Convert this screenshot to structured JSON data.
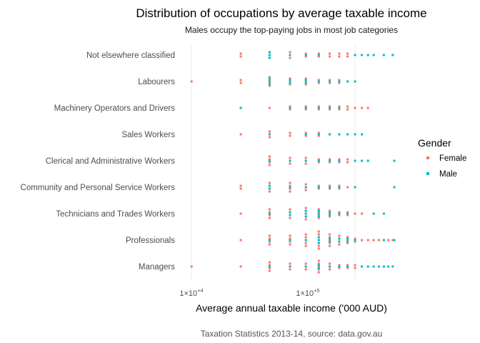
{
  "chart_data": {
    "type": "scatter",
    "title": "Distribution of occupations by average taxable income",
    "subtitle": "Males occupy the top-paying jobs in most job categories",
    "caption": "Taxation Statistics 2013-14, source: data.gov.au",
    "xlabel": "Average annual taxable income ('000 AUD)",
    "ylabel": "",
    "x_scale": "log10",
    "xlim": [
      8500,
      200000
    ],
    "x_ticks": [
      {
        "value": 10000,
        "base": "1×10",
        "exp": "+4"
      },
      {
        "value": 100000,
        "base": "1×10",
        "exp": "+5"
      }
    ],
    "grid": true,
    "legend": {
      "title": "Gender",
      "position": "right"
    },
    "colors": {
      "Female": "#F8766D",
      "Male": "#00BFC4"
    },
    "categories": [
      "Managers",
      "Professionals",
      "Technicians and Trades Workers",
      "Community and Personal Service Workers",
      "Clerical and Administrative Workers",
      "Sales Workers",
      "Machinery Operators and Drivers",
      "Labourers",
      "Not elsewhere classified"
    ],
    "series": [
      {
        "name": "Female",
        "points": {
          "Managers": [
            [
              10000,
              1
            ],
            [
              20000,
              1
            ],
            [
              30000,
              4
            ],
            [
              40000,
              3
            ],
            [
              50000,
              3
            ],
            [
              60000,
              5
            ],
            [
              70000,
              3
            ],
            [
              80000,
              2
            ],
            [
              90000,
              2
            ],
            [
              100000,
              2
            ]
          ],
          "Professionals": [
            [
              20000,
              1
            ],
            [
              30000,
              4
            ],
            [
              40000,
              4
            ],
            [
              50000,
              5
            ],
            [
              60000,
              7
            ],
            [
              70000,
              5
            ],
            [
              80000,
              4
            ],
            [
              90000,
              3
            ],
            [
              100000,
              2
            ],
            [
              110000,
              1
            ],
            [
              120000,
              1
            ],
            [
              130000,
              1
            ],
            [
              140000,
              1
            ],
            [
              150000,
              1
            ],
            [
              160000,
              1
            ],
            [
              170000,
              1
            ],
            [
              180000,
              1
            ],
            [
              190000,
              1
            ]
          ],
          "Technicians and Trades Workers": [
            [
              20000,
              1
            ],
            [
              30000,
              4
            ],
            [
              40000,
              4
            ],
            [
              50000,
              5
            ],
            [
              60000,
              4
            ],
            [
              70000,
              3
            ],
            [
              80000,
              2
            ],
            [
              90000,
              2
            ],
            [
              100000,
              1
            ],
            [
              110000,
              1
            ]
          ],
          "Community and Personal Service Workers": [
            [
              20000,
              2
            ],
            [
              30000,
              4
            ],
            [
              40000,
              4
            ],
            [
              50000,
              3
            ],
            [
              60000,
              2
            ],
            [
              70000,
              2
            ],
            [
              80000,
              2
            ],
            [
              90000,
              1
            ]
          ],
          "Clerical and Administrative Workers": [
            [
              30000,
              4
            ],
            [
              40000,
              3
            ],
            [
              50000,
              3
            ],
            [
              60000,
              2
            ],
            [
              70000,
              2
            ],
            [
              80000,
              2
            ],
            [
              90000,
              2
            ]
          ],
          "Sales Workers": [
            [
              20000,
              1
            ],
            [
              30000,
              3
            ],
            [
              40000,
              2
            ],
            [
              50000,
              2
            ],
            [
              60000,
              2
            ],
            [
              70000,
              1
            ]
          ],
          "Machinery Operators and Drivers": [
            [
              30000,
              1
            ],
            [
              40000,
              2
            ],
            [
              50000,
              2
            ],
            [
              60000,
              2
            ],
            [
              70000,
              2
            ],
            [
              80000,
              2
            ],
            [
              90000,
              2
            ],
            [
              100000,
              1
            ],
            [
              110000,
              1
            ],
            [
              120000,
              1
            ]
          ],
          "Labourers": [
            [
              10000,
              1
            ],
            [
              20000,
              2
            ],
            [
              30000,
              4
            ],
            [
              40000,
              3
            ],
            [
              50000,
              3
            ],
            [
              60000,
              2
            ],
            [
              70000,
              2
            ],
            [
              80000,
              2
            ],
            [
              90000,
              1
            ]
          ],
          "Not elsewhere classified": [
            [
              20000,
              2
            ],
            [
              30000,
              3
            ],
            [
              40000,
              3
            ],
            [
              50000,
              2
            ],
            [
              60000,
              2
            ],
            [
              70000,
              2
            ],
            [
              80000,
              2
            ],
            [
              90000,
              2
            ]
          ]
        }
      },
      {
        "name": "Male",
        "points": {
          "Managers": [
            [
              30000,
              1
            ],
            [
              40000,
              1
            ],
            [
              50000,
              1
            ],
            [
              60000,
              2
            ],
            [
              70000,
              1
            ],
            [
              80000,
              1
            ],
            [
              90000,
              1
            ],
            [
              110000,
              1
            ],
            [
              120000,
              1
            ],
            [
              130000,
              1
            ],
            [
              140000,
              1
            ],
            [
              150000,
              1
            ],
            [
              160000,
              1
            ],
            [
              170000,
              1
            ]
          ],
          "Professionals": [
            [
              30000,
              1
            ],
            [
              40000,
              1
            ],
            [
              50000,
              1
            ],
            [
              60000,
              3
            ],
            [
              70000,
              2
            ],
            [
              80000,
              2
            ],
            [
              90000,
              2
            ],
            [
              100000,
              1
            ],
            [
              150000,
              1
            ],
            [
              200000,
              1
            ],
            [
              250000,
              1
            ],
            [
              300000,
              1
            ],
            [
              350000,
              1
            ],
            [
              400000,
              1
            ],
            [
              450000,
              1
            ],
            [
              500000,
              1
            ],
            [
              550000,
              1
            ],
            [
              600000,
              1
            ]
          ],
          "Technicians and Trades Workers": [
            [
              30000,
              1
            ],
            [
              40000,
              2
            ],
            [
              50000,
              3
            ],
            [
              60000,
              3
            ],
            [
              70000,
              2
            ],
            [
              80000,
              1
            ],
            [
              90000,
              1
            ],
            [
              130000,
              1
            ],
            [
              150000,
              1
            ]
          ],
          "Community and Personal Service Workers": [
            [
              30000,
              2
            ],
            [
              40000,
              1
            ],
            [
              50000,
              1
            ],
            [
              60000,
              1
            ],
            [
              70000,
              1
            ],
            [
              80000,
              1
            ],
            [
              100000,
              1
            ],
            [
              260000,
              1
            ]
          ],
          "Clerical and Administrative Workers": [
            [
              30000,
              1
            ],
            [
              40000,
              1
            ],
            [
              50000,
              1
            ],
            [
              60000,
              1
            ],
            [
              70000,
              1
            ],
            [
              80000,
              1
            ],
            [
              100000,
              1
            ],
            [
              110000,
              1
            ],
            [
              120000,
              1
            ],
            [
              180000,
              1
            ]
          ],
          "Sales Workers": [
            [
              30000,
              1
            ],
            [
              50000,
              1
            ],
            [
              60000,
              1
            ],
            [
              70000,
              1
            ],
            [
              80000,
              1
            ],
            [
              90000,
              1
            ],
            [
              100000,
              1
            ],
            [
              110000,
              1
            ]
          ],
          "Machinery Operators and Drivers": [
            [
              20000,
              1
            ],
            [
              40000,
              1
            ],
            [
              50000,
              1
            ],
            [
              60000,
              1
            ],
            [
              70000,
              1
            ],
            [
              80000,
              1
            ]
          ],
          "Labourers": [
            [
              30000,
              3
            ],
            [
              40000,
              2
            ],
            [
              50000,
              2
            ],
            [
              60000,
              1
            ],
            [
              70000,
              1
            ],
            [
              80000,
              1
            ],
            [
              90000,
              1
            ],
            [
              100000,
              1
            ]
          ],
          "Not elsewhere classified": [
            [
              30000,
              3
            ],
            [
              40000,
              1
            ],
            [
              50000,
              1
            ],
            [
              60000,
              1
            ],
            [
              100000,
              1
            ],
            [
              110000,
              1
            ],
            [
              120000,
              1
            ],
            [
              130000,
              1
            ],
            [
              150000,
              1
            ],
            [
              170000,
              1
            ]
          ]
        }
      }
    ]
  }
}
